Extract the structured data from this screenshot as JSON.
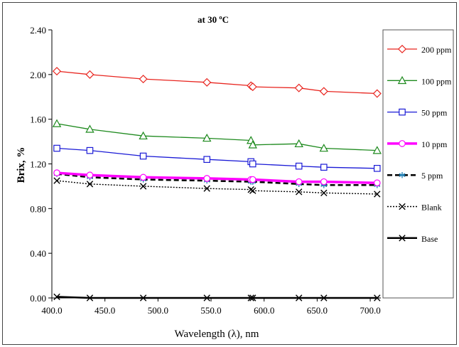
{
  "chart_data": {
    "type": "line",
    "title": "at 30 ºC",
    "xlabel": "Wavelength (λ), nm",
    "ylabel": "Brix, %",
    "xlim": [
      400,
      710
    ],
    "ylim": [
      0,
      2.4
    ],
    "xticks": [
      "400.0",
      "450.0",
      "500.0",
      "550.0",
      "600.0",
      "650.0",
      "700.0"
    ],
    "xtick_values": [
      400,
      450,
      500,
      550,
      600,
      650,
      700
    ],
    "yticks": [
      "0.00",
      "0.40",
      "0.80",
      "1.20",
      "1.60",
      "2.00",
      "2.40"
    ],
    "ytick_values": [
      0,
      0.4,
      0.8,
      1.2,
      1.6,
      2.0,
      2.4
    ],
    "grid": false,
    "legend_position": "right",
    "x": [
      404.7,
      435.8,
      486.1,
      546.1,
      587.6,
      589.3,
      632.8,
      656.3,
      706.5
    ],
    "series": [
      {
        "name": "200 ppm",
        "color": "#e8251f",
        "marker": "diamond",
        "dash": "solid",
        "width": 1.3,
        "values": [
          2.03,
          2.0,
          1.96,
          1.93,
          1.9,
          1.89,
          1.88,
          1.85,
          1.83
        ]
      },
      {
        "name": "100 ppm",
        "color": "#1e8a1e",
        "marker": "triangle",
        "dash": "solid",
        "width": 1.3,
        "values": [
          1.56,
          1.51,
          1.45,
          1.43,
          1.41,
          1.37,
          1.38,
          1.34,
          1.32
        ]
      },
      {
        "name": "50 ppm",
        "color": "#1a1ad6",
        "marker": "square",
        "dash": "solid",
        "width": 1.3,
        "values": [
          1.34,
          1.32,
          1.27,
          1.24,
          1.22,
          1.2,
          1.18,
          1.17,
          1.16
        ]
      },
      {
        "name": "10 ppm",
        "color": "#ff00ff",
        "marker": "circle",
        "dash": "solid",
        "width": 3.5,
        "values": [
          1.12,
          1.1,
          1.08,
          1.07,
          1.06,
          1.06,
          1.04,
          1.04,
          1.03
        ]
      },
      {
        "name": "5 ppm",
        "color": "#000000",
        "marker": "asterisk",
        "dash": "dashed",
        "width": 2.5,
        "values": [
          1.11,
          1.08,
          1.06,
          1.05,
          1.04,
          1.04,
          1.02,
          1.01,
          1.01
        ]
      },
      {
        "name": "Blank",
        "color": "#000000",
        "marker": "x",
        "dash": "dotted",
        "width": 1.4,
        "values": [
          1.05,
          1.02,
          1.0,
          0.98,
          0.97,
          0.96,
          0.95,
          0.94,
          0.93
        ]
      },
      {
        "name": "Base",
        "color": "#000000",
        "marker": "x",
        "dash": "solid",
        "width": 2.5,
        "values": [
          0.01,
          0.0,
          0.0,
          0.0,
          0.0,
          0.0,
          0.0,
          0.0,
          0.0
        ]
      }
    ]
  }
}
